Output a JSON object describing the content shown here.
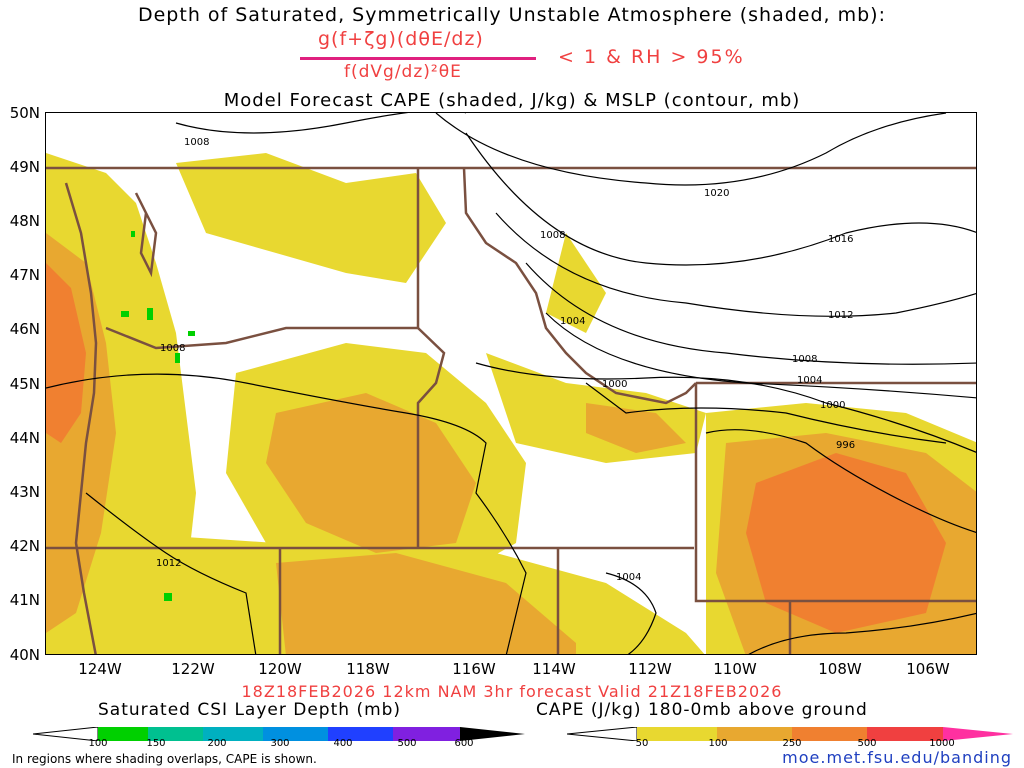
{
  "title": {
    "line1": "Depth of Saturated, Symmetrically Unstable Atmosphere (shaded, mb):",
    "numerator": "g(f+ζg)(dθE/dz)",
    "denominator": "f(dVg/dz)²θE",
    "condition": "< 1 & RH > 95%",
    "line3": "Model Forecast CAPE (shaded, J/kg) & MSLP (contour, mb)"
  },
  "map": {
    "lat_labels": [
      "50N",
      "49N",
      "48N",
      "47N",
      "46N",
      "45N",
      "44N",
      "43N",
      "42N",
      "41N",
      "40N"
    ],
    "lon_labels": [
      "124W",
      "122W",
      "120W",
      "118W",
      "116W",
      "114W",
      "112W",
      "110W",
      "108W",
      "106W"
    ],
    "mslp_labels": [
      "1008",
      "1020",
      "1008",
      "1016",
      "1012",
      "1004",
      "1008",
      "1008",
      "1004",
      "1000",
      "1000",
      "996",
      "1012",
      "1004"
    ]
  },
  "valid_line": "18Z18FEB2026 12km NAM 3hr forecast Valid 21Z18FEB2026",
  "legend_left": {
    "title": "Saturated CSI Layer Depth (mb)",
    "ticks": [
      "100",
      "150",
      "200",
      "300",
      "400",
      "500",
      "600"
    ],
    "colors": [
      "#ffffff",
      "#00d000",
      "#00c090",
      "#00b0c0",
      "#0090e0",
      "#2040ff",
      "#8020e0",
      "#000000"
    ]
  },
  "legend_right": {
    "title": "CAPE (J/kg) 180-0mb above ground",
    "ticks": [
      "50",
      "100",
      "250",
      "500",
      "1000"
    ],
    "colors": [
      "#ffffff",
      "#e8d830",
      "#e8a830",
      "#f08030",
      "#f04040",
      "#ff30a0"
    ]
  },
  "footnote": "In regions where shading overlaps, CAPE is shown.",
  "url": "moe.met.fsu.edu/banding",
  "colors": {
    "cape_light": "#e8d830",
    "cape_mid": "#e8a830",
    "cape_high": "#f08030",
    "border": "#7a5040"
  }
}
